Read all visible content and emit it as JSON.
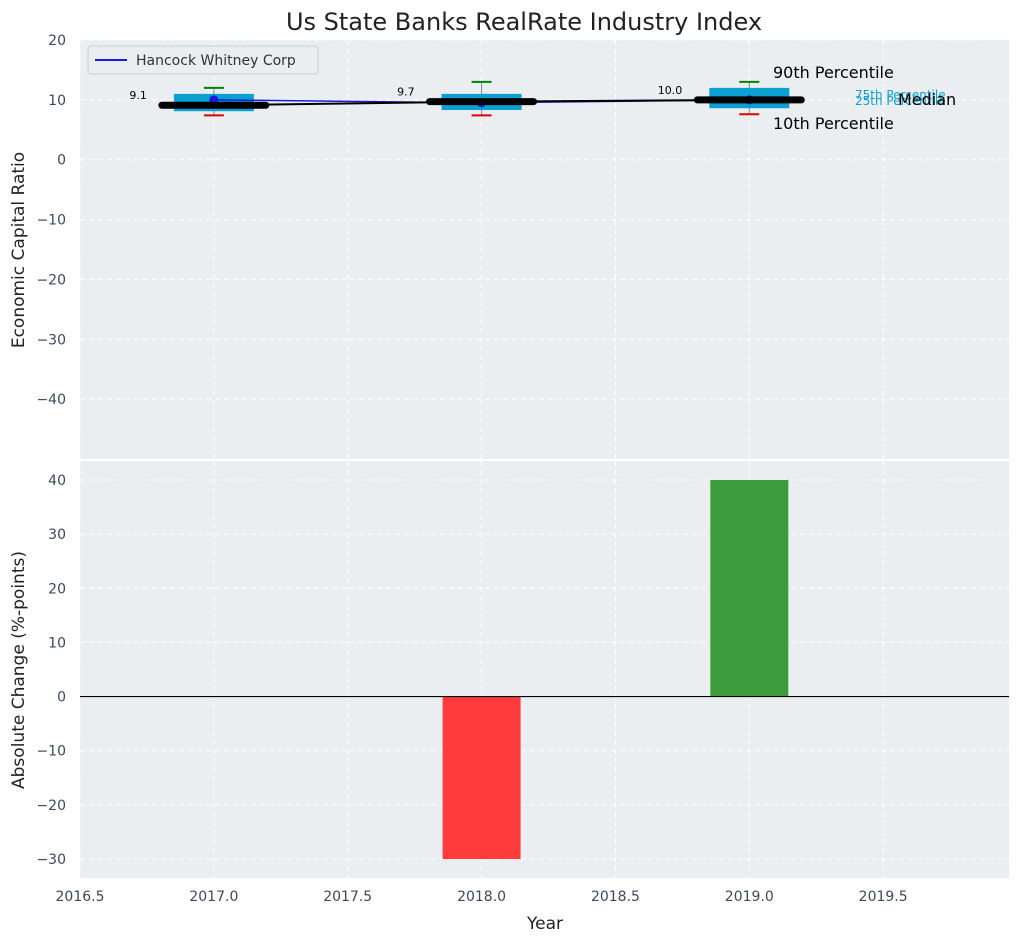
{
  "chart_data": [
    {
      "type": "box",
      "title": "Us State Banks RealRate Industry Index",
      "ylabel": "Economic Capital Ratio",
      "xlim": [
        2016.5,
        2019.97
      ],
      "ylim": [
        -50,
        20
      ],
      "yticks": [
        20,
        10,
        0,
        -10,
        -20,
        -30,
        -40
      ],
      "grid": true,
      "legend_position": "top-left",
      "legend": [
        "Hancock Whitney Corp"
      ],
      "colors": {
        "box": "#0aa0d2",
        "median": "#000000",
        "series": "#1a1adc",
        "p90": "#008000",
        "p10": "#e00000",
        "panel_bg": "#eaeef0"
      },
      "boxes": [
        {
          "x": 2017,
          "p10": 7.4,
          "p25": 8.1,
          "median": 9.1,
          "p75": 11.0,
          "p90": 12.0
        },
        {
          "x": 2018,
          "p10": 7.4,
          "p25": 8.3,
          "median": 9.7,
          "p75": 11.0,
          "p90": 13.0
        },
        {
          "x": 2019,
          "p10": 7.6,
          "p25": 8.6,
          "median": 10.0,
          "p75": 12.0,
          "p90": 13.0
        }
      ],
      "median_labels": [
        "9.1",
        "9.7",
        "10.0"
      ],
      "series": [
        {
          "name": "Hancock Whitney Corp",
          "x": [
            2017,
            2018,
            2019
          ],
          "y": [
            10.0,
            9.5,
            10.0
          ]
        }
      ],
      "annotations": {
        "p90": "90th Percentile",
        "p75": "75th Percentile",
        "median": "Median",
        "p25": "25th Percentile",
        "p10": "10th Percentile"
      }
    },
    {
      "type": "bar",
      "xlabel": "Year",
      "ylabel": "Absolute Change (%-points)",
      "xlim": [
        2016.5,
        2019.97
      ],
      "ylim": [
        -33.5,
        43.5
      ],
      "yticks": [
        40,
        30,
        20,
        10,
        0,
        -10,
        -20,
        -30
      ],
      "xticks": [
        2016.5,
        2017.0,
        2017.5,
        2018.0,
        2018.5,
        2019.0,
        2019.5
      ],
      "xtick_labels": [
        "2016.5",
        "2017.0",
        "2017.5",
        "2018.0",
        "2018.5",
        "2019.0",
        "2019.5"
      ],
      "grid": true,
      "x": [
        2018,
        2019
      ],
      "values": [
        -30,
        40
      ],
      "colors": [
        "#ff3b3b",
        "#3c9c3c"
      ]
    }
  ]
}
